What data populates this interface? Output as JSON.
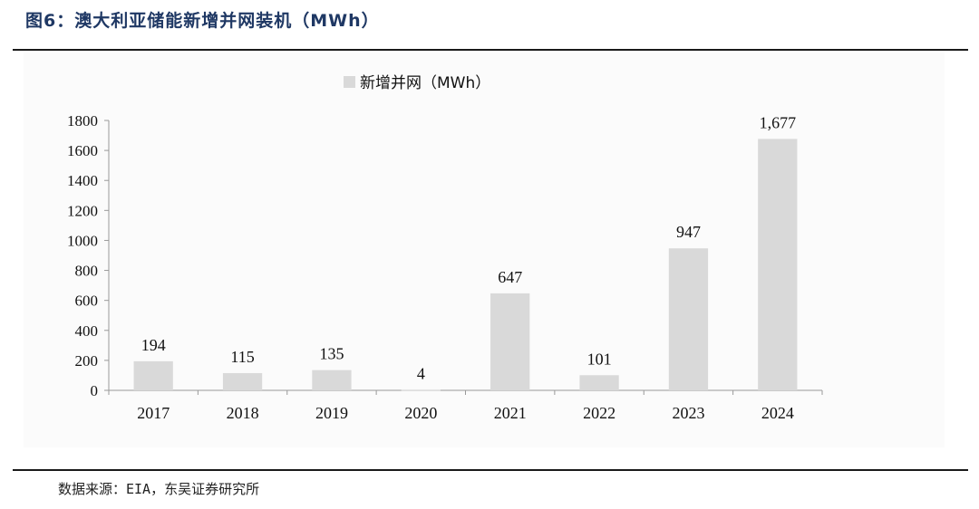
{
  "figure": {
    "title": "图6：澳大利亚储能新增并网装机（MWh）",
    "source": "数据来源：EIA，东吴证券研究所"
  },
  "chart_data": {
    "type": "bar",
    "title": "",
    "xlabel": "",
    "ylabel": "",
    "categories": [
      "2017",
      "2018",
      "2019",
      "2020",
      "2021",
      "2022",
      "2023",
      "2024"
    ],
    "series": [
      {
        "name": "新增并网（MWh）",
        "values": [
          194,
          115,
          135,
          4,
          647,
          101,
          947,
          1677
        ],
        "labels": [
          "194",
          "115",
          "135",
          "4",
          "647",
          "101",
          "947",
          "1,677"
        ],
        "color": "#d9d9d9"
      }
    ],
    "ylim": [
      0,
      1800
    ],
    "yticks": [
      0,
      200,
      400,
      600,
      800,
      1000,
      1200,
      1400,
      1600,
      1800
    ],
    "legend": "top-center",
    "grid": false
  }
}
